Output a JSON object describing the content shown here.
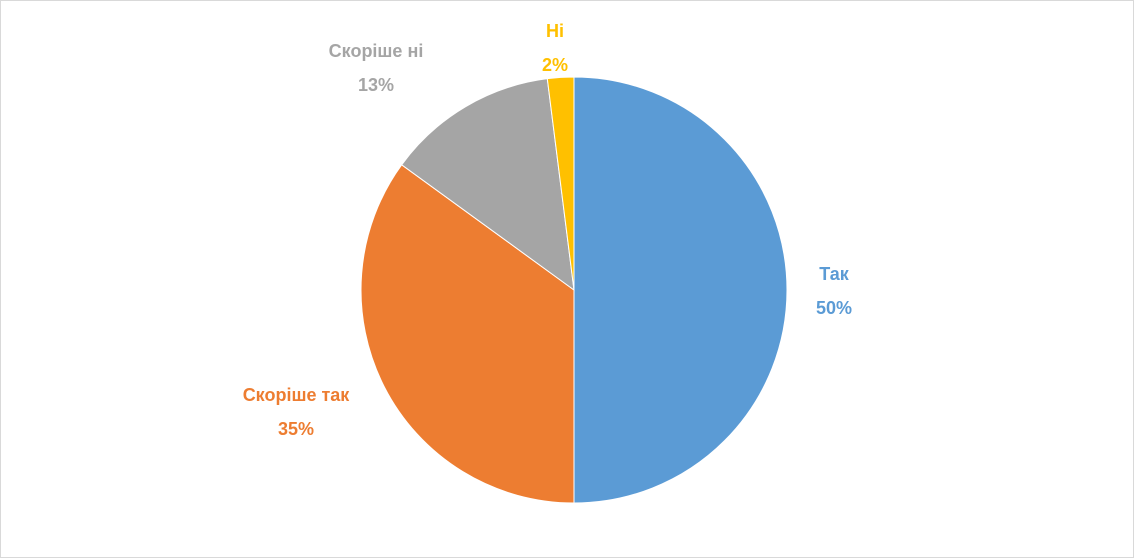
{
  "chart_data": {
    "type": "pie",
    "categories": [
      "Так",
      "Скоріше так",
      "Скоріше ні",
      "Ні"
    ],
    "values": [
      50,
      35,
      13,
      2
    ],
    "value_labels": [
      "50%",
      "35%",
      "13%",
      "2%"
    ],
    "colors": [
      "#5b9bd5",
      "#ed7d31",
      "#a5a5a5",
      "#ffc000"
    ]
  }
}
